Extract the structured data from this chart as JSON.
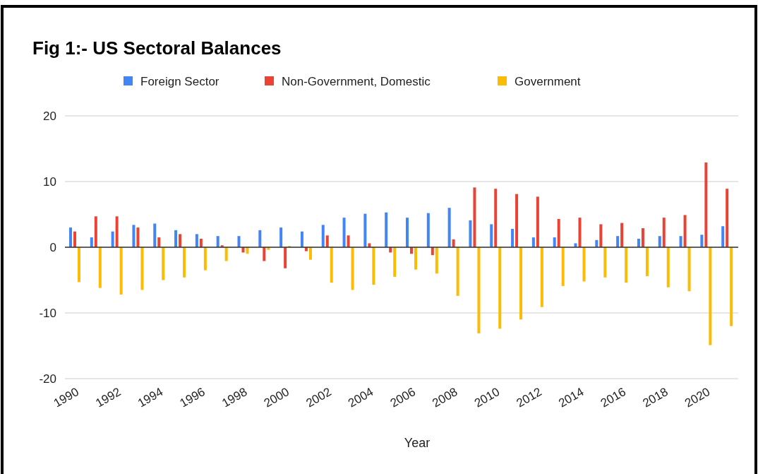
{
  "chart_data": {
    "type": "bar",
    "title": "Fig 1:- US Sectoral Balances",
    "xlabel": "Year",
    "categories": [
      "1990",
      null,
      "1992",
      null,
      "1994",
      null,
      "1996",
      null,
      "1998",
      null,
      "2000",
      null,
      "2002",
      null,
      "2004",
      null,
      "2006",
      null,
      "2008",
      null,
      "2010",
      null,
      "2012",
      null,
      "2014",
      null,
      "2016",
      null,
      "2018",
      null,
      "2020",
      null
    ],
    "series": [
      {
        "name": "Foreign Sector",
        "color": "#4285f4",
        "values": [
          3.0,
          1.5,
          2.4,
          3.4,
          3.6,
          2.6,
          2.0,
          1.7,
          1.7,
          2.6,
          3.0,
          2.4,
          3.4,
          4.5,
          5.1,
          5.3,
          4.5,
          5.2,
          6.0,
          4.1,
          3.5,
          2.8,
          1.5,
          1.5,
          0.6,
          1.1,
          1.7,
          1.3,
          1.7,
          1.7,
          1.9,
          3.2
        ]
      },
      {
        "name": "Non-Government, Domestic",
        "color": "#ea4335",
        "values": [
          2.4,
          4.7,
          4.7,
          3.0,
          1.5,
          2.0,
          1.3,
          0.3,
          -0.8,
          -2.1,
          -3.2,
          -0.6,
          1.8,
          1.8,
          0.6,
          -0.8,
          -1.0,
          -1.2,
          1.2,
          9.1,
          8.9,
          8.1,
          7.7,
          4.3,
          4.5,
          3.5,
          3.7,
          2.9,
          4.5,
          4.9,
          12.9,
          8.9
        ]
      },
      {
        "name": "Government",
        "color": "#fbbc04",
        "values": [
          -5.3,
          -6.2,
          -7.2,
          -6.5,
          -5.0,
          -4.6,
          -3.5,
          -2.1,
          -1.0,
          -0.4,
          0.2,
          -1.9,
          -5.4,
          -6.5,
          -5.7,
          -4.5,
          -3.4,
          -4.0,
          -7.4,
          -13.1,
          -12.4,
          -11.0,
          -9.1,
          -5.9,
          -5.2,
          -4.6,
          -5.4,
          -4.4,
          -6.1,
          -6.7,
          -14.9,
          -12.0
        ]
      }
    ],
    "ylim": [
      -20,
      20
    ],
    "yticks": [
      -20,
      -10,
      0,
      10,
      20
    ],
    "grid": "y",
    "legend": "top"
  }
}
